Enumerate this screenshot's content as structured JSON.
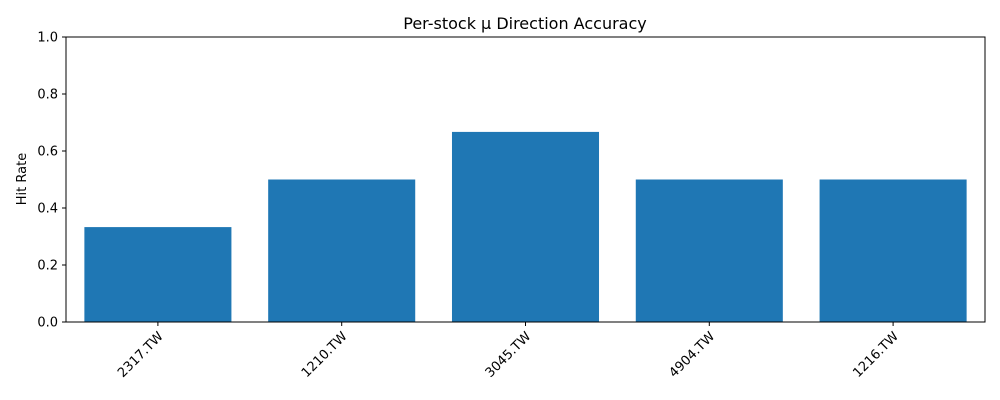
{
  "chart_data": {
    "type": "bar",
    "title": "Per-stock μ Direction Accuracy",
    "xlabel": "",
    "ylabel": "Hit Rate",
    "categories": [
      "2317.TW",
      "1210.TW",
      "3045.TW",
      "4904.TW",
      "1216.TW"
    ],
    "values": [
      0.333,
      0.5,
      0.667,
      0.5,
      0.5
    ],
    "ylim": [
      0,
      1.0
    ],
    "yticks": [
      "0.0",
      "0.2",
      "0.4",
      "0.6",
      "0.8",
      "1.0"
    ],
    "bar_color": "#1f77b4",
    "grid": false,
    "legend": "none"
  }
}
